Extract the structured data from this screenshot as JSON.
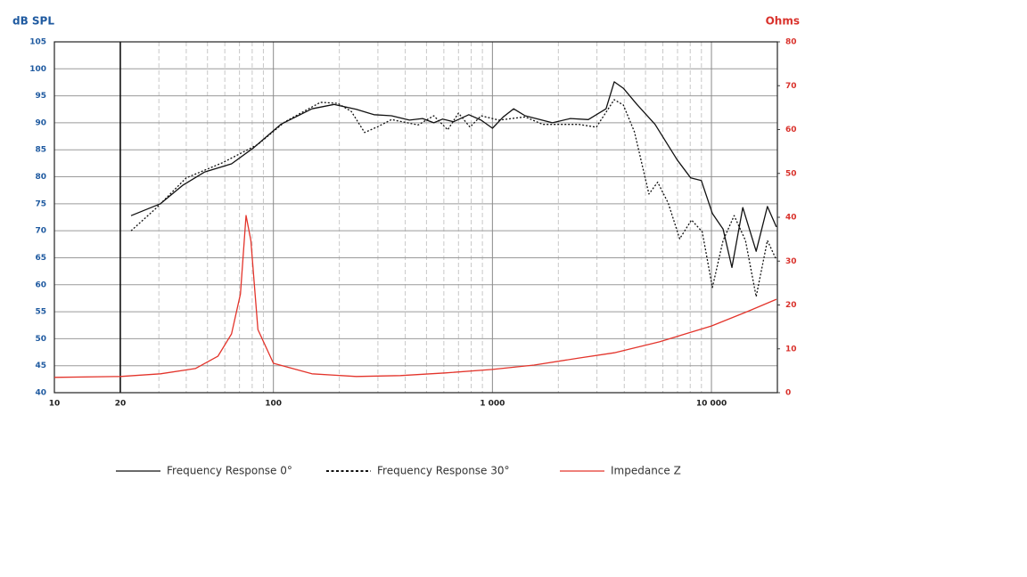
{
  "chart_data": {
    "type": "line",
    "y_label": "dB SPL",
    "y2_label": "Ohms",
    "log_x": true,
    "xlim": [
      10,
      20000
    ],
    "xticks": [
      10,
      20,
      100,
      {
        "value": 1000,
        "label": "1 000"
      },
      {
        "value": 10000,
        "label": "10 000"
      }
    ],
    "ylim": [
      40,
      105
    ],
    "yticks": [
      40,
      45,
      50,
      55,
      60,
      65,
      70,
      75,
      80,
      85,
      90,
      95,
      100,
      105
    ],
    "y2lim": [
      0,
      80
    ],
    "y2ticks": [
      0,
      10,
      20,
      30,
      40,
      50,
      60,
      70,
      80
    ],
    "grid": true,
    "legend": "bottom",
    "series": [
      {
        "name": "Frequency Response 0°",
        "color": "#111111",
        "linestyle": "solid",
        "x": [
          22.4,
          30.5,
          38.5,
          48.6,
          64.4,
          81.4,
          108,
          150,
          189,
          239,
          288,
          346,
          418,
          480,
          540,
          593,
          665,
          780,
          887,
          1000,
          1120,
          1250,
          1410,
          1880,
          2270,
          2740,
          3300,
          3600,
          3960,
          4570,
          5530,
          6980,
          8040,
          8990,
          10100,
          11300,
          12400,
          13900,
          16000,
          18000,
          19800
        ],
        "values": [
          72.8,
          75,
          78.4,
          80.9,
          82.4,
          85.4,
          89.7,
          92.6,
          93.4,
          92.5,
          91.5,
          91.3,
          90.5,
          90.8,
          90,
          90.7,
          90.2,
          91.5,
          90.5,
          89,
          91.1,
          92.6,
          91.3,
          90,
          90.8,
          90.6,
          92.6,
          97.6,
          96.4,
          93.4,
          89.7,
          83.1,
          79.8,
          79.3,
          73.2,
          70.3,
          63.2,
          74.3,
          66.2,
          74.5,
          70.7
        ]
      },
      {
        "name": "Frequency Response 30°",
        "color": "#111111",
        "linestyle": "dotted",
        "x": [
          22.4,
          29,
          40,
          58.5,
          85,
          113,
          164,
          197,
          227,
          261,
          300,
          346,
          458,
          540,
          625,
          700,
          790,
          887,
          1070,
          1410,
          1700,
          2480,
          2980,
          3600,
          3960,
          4450,
          5180,
          5680,
          6350,
          7160,
          8110,
          9080,
          10100,
          11300,
          12700,
          14300,
          16000,
          18000,
          19800
        ],
        "values": [
          70,
          74.1,
          79.8,
          82.6,
          86,
          90.2,
          93.8,
          93.6,
          92.1,
          88.2,
          89.3,
          90.6,
          89.6,
          91.3,
          88.7,
          91.8,
          89.2,
          91.3,
          90.5,
          91.1,
          89.7,
          89.7,
          89.2,
          94.3,
          93.3,
          88.3,
          76.8,
          79,
          75.1,
          68.5,
          72,
          69.8,
          59.5,
          68.2,
          72.8,
          68.2,
          57.8,
          68.2,
          64.6
        ]
      },
      {
        "name": "Impedance Z",
        "color": "#e3342b",
        "linestyle": "solid",
        "axis": "y2",
        "x": [
          10,
          20,
          30.5,
          44,
          55.8,
          64.4,
          70.7,
          75,
          78.9,
          85,
          100,
          150,
          239,
          380,
          610,
          1000,
          1550,
          2480,
          3600,
          5790,
          10000,
          14600,
          19800
        ],
        "values": [
          3.5,
          3.7,
          4.3,
          5.5,
          8.3,
          13.4,
          22.5,
          40.4,
          34.7,
          14.4,
          6.7,
          4.3,
          3.7,
          3.9,
          4.5,
          5.3,
          6.3,
          7.9,
          9.1,
          11.6,
          15.2,
          18.5,
          21.3
        ]
      }
    ]
  }
}
